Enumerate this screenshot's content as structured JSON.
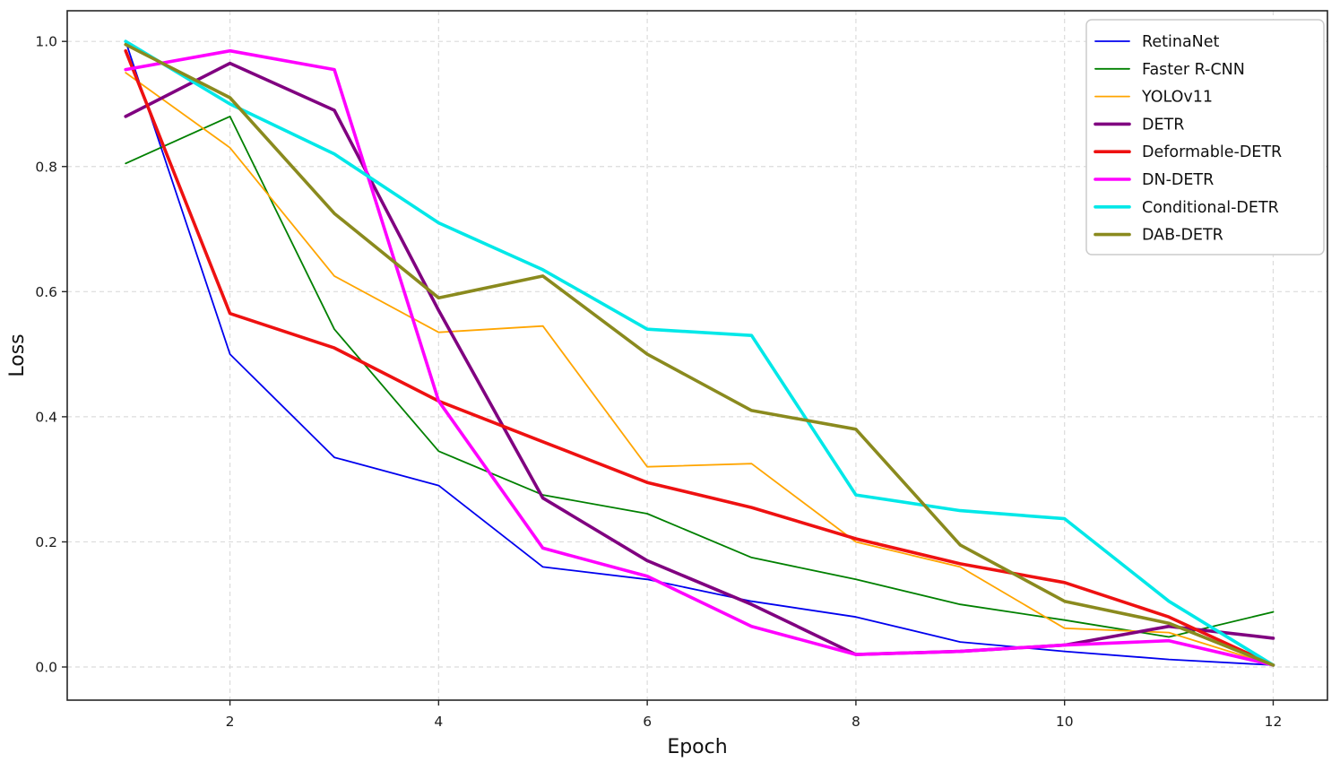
{
  "figure": {
    "xlabel": "Epoch",
    "ylabel": "Loss",
    "background": "#ffffff",
    "plot_border_color": "#262626",
    "grid_color": "#dcdcdc",
    "tick_label_color": "#1c1c1c",
    "legend_border_color": "#cccccc",
    "legend_background": "#ffffff"
  },
  "chart_data": {
    "type": "line",
    "title": "",
    "xlabel": "Epoch",
    "ylabel": "Loss",
    "grid": true,
    "legend_position": "upper right",
    "x": [
      1,
      2,
      3,
      4,
      5,
      6,
      7,
      8,
      9,
      10,
      11,
      12
    ],
    "x_ticks": [
      2,
      4,
      6,
      8,
      10,
      12
    ],
    "y_ticks": [
      0.0,
      0.2,
      0.4,
      0.6,
      0.8,
      1.0
    ],
    "xlim": [
      0.44,
      12.52
    ],
    "ylim": [
      -0.053,
      1.049
    ],
    "series": [
      {
        "name": "RetinaNet",
        "color": "#0000ee",
        "line_width": 1.8,
        "values": [
          1.0,
          0.5,
          0.335,
          0.29,
          0.16,
          0.14,
          0.105,
          0.08,
          0.04,
          0.025,
          0.012,
          0.003
        ]
      },
      {
        "name": "Faster R-CNN",
        "color": "#008000",
        "line_width": 1.8,
        "values": [
          0.805,
          0.88,
          0.54,
          0.345,
          0.275,
          0.245,
          0.175,
          0.14,
          0.1,
          0.075,
          0.048,
          0.088
        ]
      },
      {
        "name": "YOLOv11",
        "color": "#ffa500",
        "line_width": 1.8,
        "values": [
          0.95,
          0.83,
          0.625,
          0.535,
          0.545,
          0.32,
          0.325,
          0.2,
          0.16,
          0.062,
          0.055,
          0.003
        ]
      },
      {
        "name": "DETR",
        "color": "#800080",
        "line_width": 3.6,
        "values": [
          0.88,
          0.965,
          0.89,
          0.57,
          0.27,
          0.17,
          0.1,
          0.02,
          0.025,
          0.035,
          0.065,
          0.046
        ]
      },
      {
        "name": "Deformable-DETR",
        "color": "#ee1111",
        "line_width": 3.6,
        "values": [
          0.985,
          0.565,
          0.51,
          0.425,
          0.36,
          0.295,
          0.255,
          0.205,
          0.165,
          0.135,
          0.08,
          0.003
        ]
      },
      {
        "name": "DN-DETR",
        "color": "#ff00ff",
        "line_width": 3.6,
        "values": [
          0.955,
          0.985,
          0.955,
          0.425,
          0.19,
          0.145,
          0.065,
          0.02,
          0.025,
          0.035,
          0.042,
          0.003
        ]
      },
      {
        "name": "Conditional-DETR",
        "color": "#00e8e8",
        "line_width": 3.6,
        "values": [
          1.0,
          0.9,
          0.82,
          0.71,
          0.635,
          0.54,
          0.53,
          0.275,
          0.25,
          0.237,
          0.105,
          0.003
        ]
      },
      {
        "name": "DAB-DETR",
        "color": "#8a8a1e",
        "line_width": 3.6,
        "values": [
          0.995,
          0.91,
          0.725,
          0.59,
          0.625,
          0.5,
          0.41,
          0.38,
          0.195,
          0.105,
          0.07,
          0.003
        ]
      }
    ]
  }
}
